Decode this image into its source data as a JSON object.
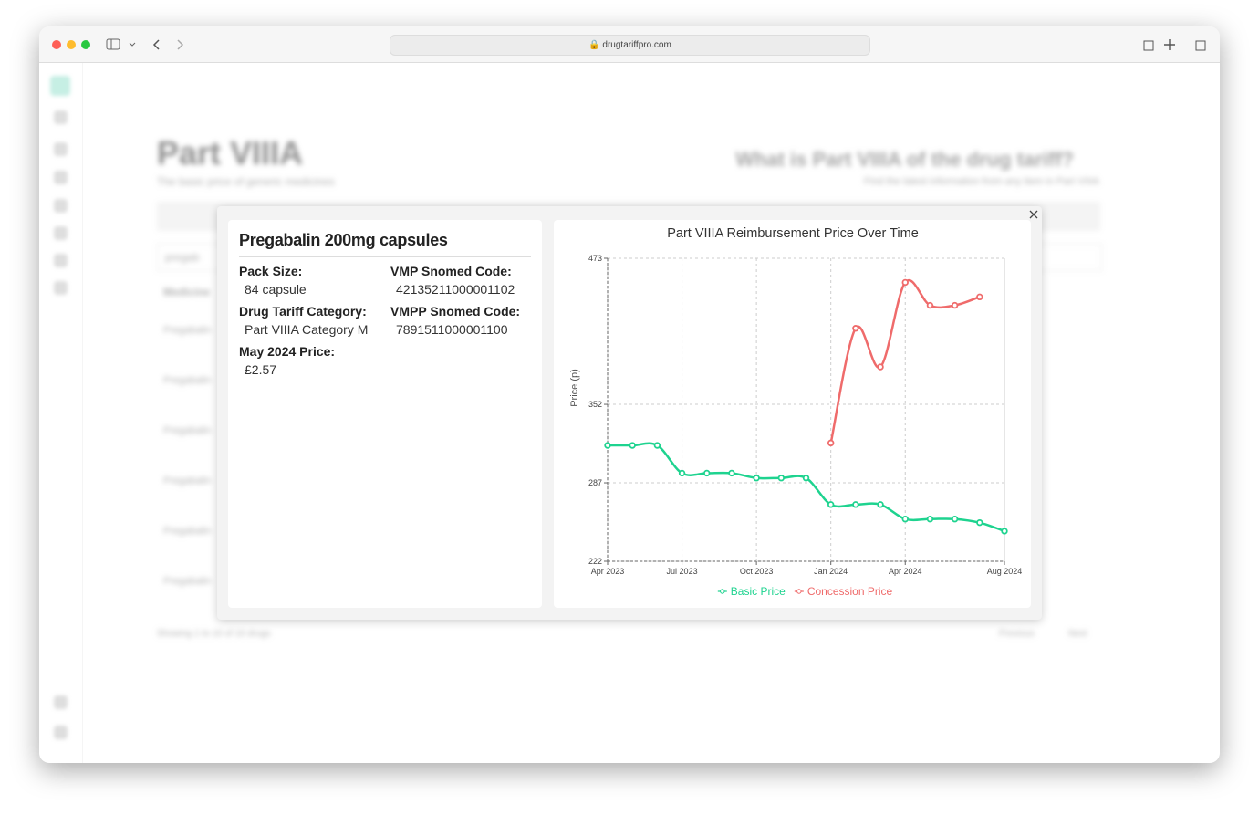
{
  "browser": {
    "url": "drugtariffpro.com"
  },
  "background": {
    "title": "Part VIIIA",
    "subtitle": "The basic price of generic medicines",
    "help_title": "What is Part VIIIA of the drug tariff?",
    "help_subtitle": "Find the latest information from any item in Part VIIIA",
    "search": "pregab",
    "column": "Medicine",
    "rows": [
      "Pregabalin",
      "Pregabalin",
      "Pregabalin",
      "Pregabalin",
      "Pregabalin",
      "Pregabalin"
    ],
    "footer": "Showing 1 to 10 of 10 drugs",
    "previous": "Previous",
    "next": "Next"
  },
  "details": {
    "title": "Pregabalin 200mg capsules",
    "fields": [
      {
        "label": "Pack Size:",
        "value": "84 capsule"
      },
      {
        "label": "VMP Snomed Code:",
        "value": "42135211000001102"
      },
      {
        "label": "Drug Tariff Category:",
        "value": "Part VIIIA Category M"
      },
      {
        "label": "VMPP Snomed Code:",
        "value": "7891511000001100"
      },
      {
        "label": "May 2024 Price:",
        "value": "£2.57"
      }
    ]
  },
  "chart_data": {
    "type": "line",
    "title": "Part VIIIA Reimbursement Price Over Time",
    "y_label": "Price (p)",
    "categories": [
      "Apr 2023",
      null,
      null,
      "Jul 2023",
      null,
      null,
      "Oct 2023",
      null,
      null,
      "Jan 2024",
      null,
      null,
      "Apr 2024",
      null,
      null,
      null,
      "Aug 2024"
    ],
    "series": [
      {
        "name": "Basic Price",
        "color": "#1ed38f",
        "values": [
          318,
          318,
          318,
          295,
          295,
          295,
          291,
          291,
          291,
          269,
          269,
          269,
          257,
          257,
          257,
          254,
          247
        ]
      },
      {
        "name": "Concession Price",
        "color": "#ef6b6b",
        "values": [
          null,
          null,
          null,
          null,
          null,
          null,
          null,
          null,
          null,
          320,
          415,
          383,
          453,
          434,
          434,
          441,
          null
        ]
      }
    ],
    "ylim": [
      222,
      473
    ],
    "yticks": [
      222,
      287,
      352,
      473
    ],
    "grid": true,
    "legend": "bottom"
  }
}
